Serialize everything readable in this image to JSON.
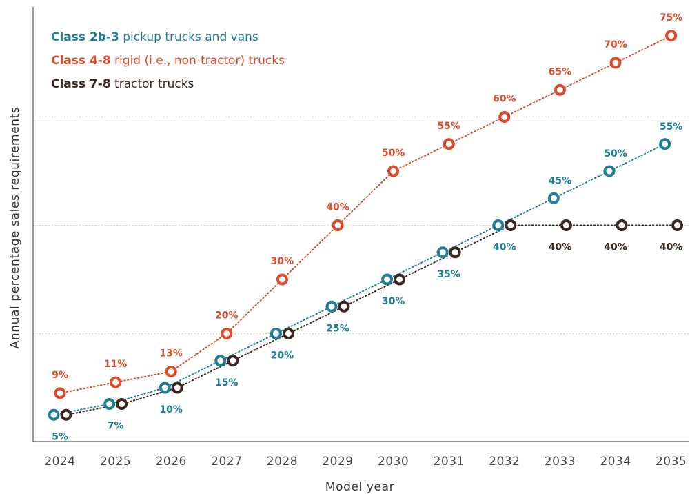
{
  "chart_data": {
    "type": "line",
    "xlabel": "Model year",
    "ylabel": "Annual percentage sales requirements",
    "x": [
      "2024",
      "2025",
      "2026",
      "2027",
      "2028",
      "2029",
      "2030",
      "2031",
      "2032",
      "2033",
      "2034",
      "2035"
    ],
    "ylim": [
      0,
      80
    ],
    "grid": "horizontal dotted lines at 20, 40, 60",
    "legend_position": "top-left",
    "series": [
      {
        "name_bold": "Class 2b-3",
        "name_rest": " pickup trucks and vans",
        "color": "#1f7f97",
        "values": [
          5,
          7,
          10,
          15,
          20,
          25,
          30,
          35,
          40,
          45,
          50,
          55
        ],
        "labels": [
          "5%",
          "7%",
          "10%",
          "15%",
          "20%",
          "25%",
          "30%",
          "35%",
          "40%",
          "45%",
          "50%",
          "55%"
        ]
      },
      {
        "name_bold": "Class 4-8",
        "name_rest": " rigid (i.e., non-tractor) trucks",
        "color": "#dd4b2a",
        "values": [
          9,
          11,
          13,
          20,
          30,
          40,
          50,
          55,
          60,
          65,
          70,
          75
        ],
        "labels": [
          "9%",
          "11%",
          "13%",
          "20%",
          "30%",
          "40%",
          "50%",
          "55%",
          "60%",
          "65%",
          "70%",
          "75%"
        ]
      },
      {
        "name_bold": "Class 7-8",
        "name_rest": " tractor trucks",
        "color": "#3d2620",
        "values": [
          5,
          7,
          10,
          15,
          20,
          25,
          30,
          35,
          40,
          40,
          40,
          40
        ],
        "labels": [
          "",
          "",
          "",
          "",
          "",
          "",
          "",
          "",
          "",
          "40%",
          "40%",
          "40%"
        ]
      }
    ]
  }
}
